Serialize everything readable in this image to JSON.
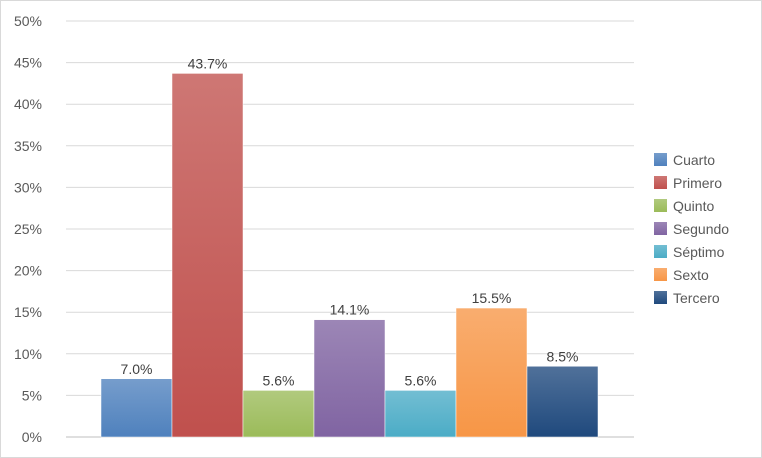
{
  "chart_data": {
    "type": "bar",
    "title": "",
    "xlabel": "",
    "ylabel": "",
    "ylim": [
      0,
      50
    ],
    "y_tick_step": 5,
    "y_tick_format": "percent",
    "grid": true,
    "legend_position": "right",
    "categories": [
      "Cuarto",
      "Primero",
      "Quinto",
      "Segundo",
      "Séptimo",
      "Sexto",
      "Tercero"
    ],
    "values": [
      7.0,
      43.7,
      5.6,
      14.1,
      5.6,
      15.5,
      8.5
    ],
    "data_labels": [
      "7.0%",
      "43.7%",
      "5.6%",
      "14.1%",
      "5.6%",
      "15.5%",
      "8.5%"
    ],
    "colors": [
      "#4f81bd",
      "#c0504d",
      "#9bbb59",
      "#8064a2",
      "#4bacc6",
      "#f79646",
      "#1f497d"
    ],
    "y_tick_labels": [
      "0%",
      "5%",
      "10%",
      "15%",
      "20%",
      "25%",
      "30%",
      "35%",
      "40%",
      "45%",
      "50%"
    ]
  }
}
